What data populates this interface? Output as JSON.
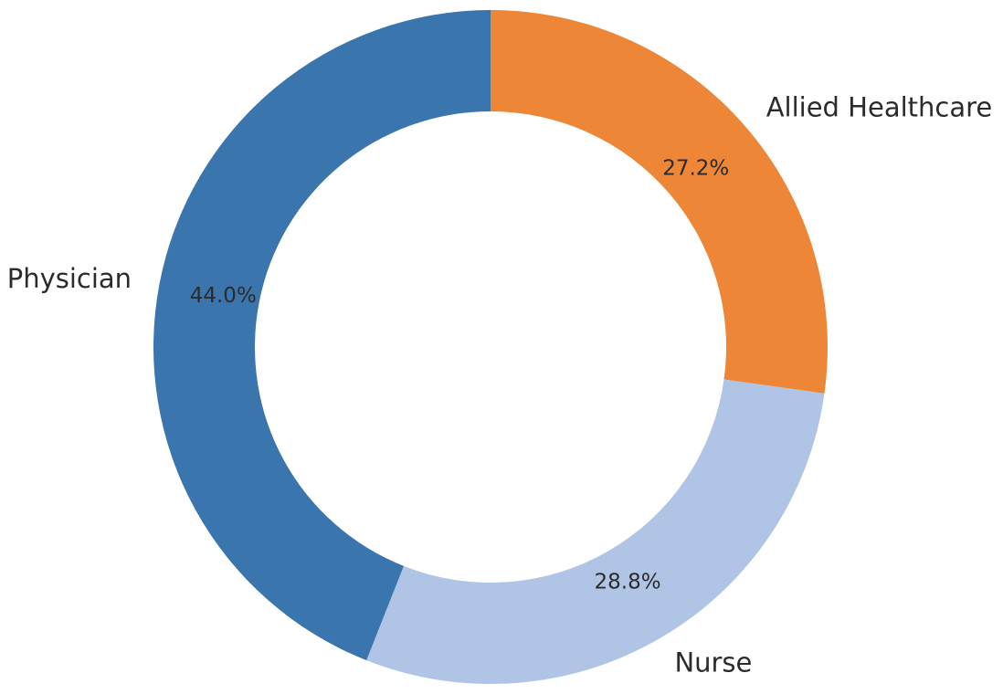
{
  "chart_data": {
    "type": "pie",
    "donut": true,
    "start_angle_deg": 90,
    "direction": "clockwise",
    "slices": [
      {
        "label": "Allied Healthcare",
        "value": 27.2,
        "display": "27.2%",
        "color": "#ed8636"
      },
      {
        "label": "Nurse",
        "value": 28.8,
        "display": "28.8%",
        "color": "#b0c5e6"
      },
      {
        "label": "Physician",
        "value": 44.0,
        "display": "44.0%",
        "color": "#3a75ae"
      }
    ]
  }
}
